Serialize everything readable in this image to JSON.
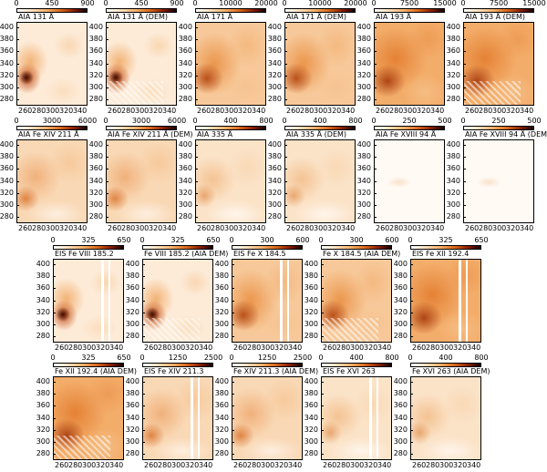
{
  "figure": {
    "rows": [
      {
        "panels": [
          {
            "label": "AIA 131 Å",
            "cbar": [
              "0",
              "450",
              "900"
            ],
            "style": "core"
          },
          {
            "label": "AIA 131 Å (DEM)",
            "cbar": [
              "0",
              "450",
              "900"
            ],
            "style": "core-dem"
          },
          {
            "label": "AIA 171 Å",
            "cbar": [
              "0",
              "10000",
              "20000"
            ],
            "style": "fan"
          },
          {
            "label": "AIA 171 Å (DEM)",
            "cbar": [
              "0",
              "10000",
              "20000"
            ],
            "style": "fan"
          },
          {
            "label": "AIA 193 Å",
            "cbar": [
              "0",
              "7500",
              "15000"
            ],
            "style": "bright"
          },
          {
            "label": "AIA 193 Å (DEM)",
            "cbar": [
              "0",
              "7500",
              "15000"
            ],
            "style": "bright-dem"
          }
        ]
      },
      {
        "panels": [
          {
            "label": "AIA Fe XIV 211 Å",
            "cbar": [
              "0",
              "3000",
              "6000"
            ],
            "style": "diffuse"
          },
          {
            "label": "AIA Fe XIV 211 Å (DEM)",
            "cbar": [
              "0",
              "3000",
              "6000"
            ],
            "style": "diffuse"
          },
          {
            "label": "AIA 335 Å",
            "cbar": [
              "0",
              "400",
              "800"
            ],
            "style": "faint"
          },
          {
            "label": "AIA 335 Å (DEM)",
            "cbar": [
              "0",
              "400",
              "800"
            ],
            "style": "faint"
          },
          {
            "label": "AIA Fe XVIII 94 Å",
            "cbar": [
              "0",
              "250",
              "500"
            ],
            "style": "blank"
          },
          {
            "label": "AIA Fe XVIII 94 Å (DEM)",
            "cbar": [
              "0",
              "250",
              "500"
            ],
            "style": "blank"
          }
        ]
      },
      {
        "panels": [
          {
            "label": "EIS Fe VIII 185.2",
            "cbar": [
              "0",
              "325",
              "650"
            ],
            "style": "core-gap"
          },
          {
            "label": "Fe VIII 185.2 (AIA DEM)",
            "cbar": [
              "0",
              "325",
              "650"
            ],
            "style": "core-dem"
          },
          {
            "label": "EIS Fe X 184.5",
            "cbar": [
              "0",
              "300",
              "600"
            ],
            "style": "fan-gap"
          },
          {
            "label": "Fe X 184.5 (AIA DEM)",
            "cbar": [
              "0",
              "300",
              "600"
            ],
            "style": "fan-dem"
          },
          {
            "label": "EIS Fe XII 192.4",
            "cbar": [
              "0",
              "325",
              "650"
            ],
            "style": "bright-gap"
          }
        ]
      },
      {
        "panels": [
          {
            "label": "Fe XII 192.4 (AIA DEM)",
            "cbar": [
              "0",
              "325",
              "650"
            ],
            "style": "bright-dem"
          },
          {
            "label": "EIS Fe XIV 211.3",
            "cbar": [
              "0",
              "1250",
              "2500"
            ],
            "style": "diffuse-gap"
          },
          {
            "label": "Fe XIV 211.3 (AIA DEM)",
            "cbar": [
              "0",
              "1250",
              "2500"
            ],
            "style": "diffuse"
          },
          {
            "label": "EIS Fe XVI 263",
            "cbar": [
              "0",
              "400",
              "800"
            ],
            "style": "faint-gap"
          },
          {
            "label": "Fe XVI 263 (AIA DEM)",
            "cbar": [
              "0",
              "400",
              "800"
            ],
            "style": "faint"
          }
        ]
      }
    ],
    "y_ticks": [
      "400",
      "380",
      "360",
      "340",
      "320",
      "300",
      "280"
    ],
    "x_ticks": [
      "260",
      "280",
      "300",
      "320",
      "340"
    ]
  }
}
